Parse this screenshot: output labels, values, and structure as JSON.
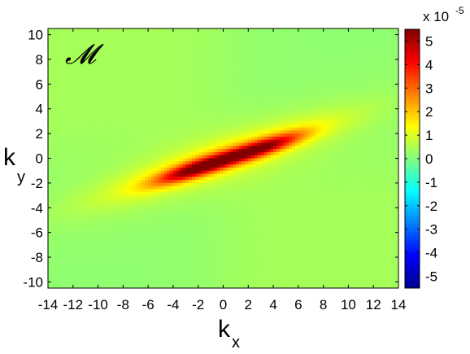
{
  "chart_data": {
    "type": "heatmap",
    "title": "",
    "panel_label": "𝓜",
    "xlabel": "k",
    "xlabel_subscript": "x",
    "ylabel": "k",
    "ylabel_subscript": "y",
    "xlim": [
      -14,
      14
    ],
    "ylim": [
      -10.5,
      10.5
    ],
    "x_ticks": [
      -14,
      -12,
      -10,
      -8,
      -6,
      -4,
      -2,
      0,
      2,
      4,
      6,
      8,
      10,
      12,
      14
    ],
    "y_ticks": [
      -10,
      -8,
      -6,
      -4,
      -2,
      0,
      2,
      4,
      6,
      8,
      10
    ],
    "grid": false,
    "colormap": "jet",
    "colorbar": {
      "range": [
        -5.5,
        5.5
      ],
      "ticks": [
        -5,
        -4,
        -3,
        -2,
        -1,
        0,
        1,
        2,
        3,
        4,
        5
      ],
      "scale_prefix": "x 10",
      "scale_exponent": "-5"
    },
    "features": {
      "background_value": 0.3,
      "lobes": [
        {
          "kx": -2,
          "ky": -0.8,
          "peak": 5.2
        },
        {
          "kx": 3,
          "ky": 0.8,
          "peak": 5.0
        }
      ],
      "ridge_slope": 0.32,
      "ridge_extent_kx": [
        -9,
        12
      ]
    }
  }
}
